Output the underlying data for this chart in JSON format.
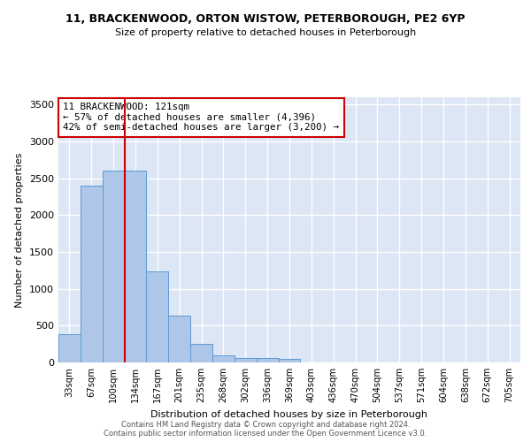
{
  "title_line1": "11, BRACKENWOOD, ORTON WISTOW, PETERBOROUGH, PE2 6YP",
  "title_line2": "Size of property relative to detached houses in Peterborough",
  "xlabel": "Distribution of detached houses by size in Peterborough",
  "ylabel": "Number of detached properties",
  "categories": [
    "33sqm",
    "67sqm",
    "100sqm",
    "134sqm",
    "167sqm",
    "201sqm",
    "235sqm",
    "268sqm",
    "302sqm",
    "336sqm",
    "369sqm",
    "403sqm",
    "436sqm",
    "470sqm",
    "504sqm",
    "537sqm",
    "571sqm",
    "604sqm",
    "638sqm",
    "672sqm",
    "705sqm"
  ],
  "values": [
    390,
    2400,
    2610,
    2610,
    1240,
    640,
    255,
    95,
    55,
    55,
    45,
    0,
    0,
    0,
    0,
    0,
    0,
    0,
    0,
    0,
    0
  ],
  "bar_color": "#aec6e8",
  "bar_edge_color": "#5b9bd5",
  "vline_index": 2.5,
  "vline_color": "#cc0000",
  "annotation_text": "11 BRACKENWOOD: 121sqm\n← 57% of detached houses are smaller (4,396)\n42% of semi-detached houses are larger (3,200) →",
  "annotation_box_color": "#cc0000",
  "ylim": [
    0,
    3600
  ],
  "yticks": [
    0,
    500,
    1000,
    1500,
    2000,
    2500,
    3000,
    3500
  ],
  "background_color": "#dce6f5",
  "grid_color": "#ffffff",
  "footer_line1": "Contains HM Land Registry data © Crown copyright and database right 2024.",
  "footer_line2": "Contains public sector information licensed under the Open Government Licence v3.0."
}
